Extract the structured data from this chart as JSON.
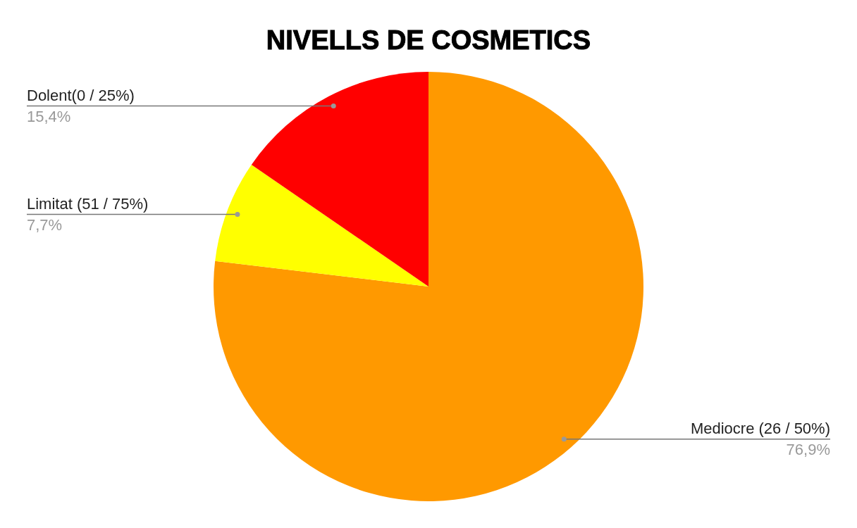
{
  "chart_data": {
    "type": "pie",
    "title": "NIVELLS DE COSMETICS",
    "categories": [
      "Mediocre (26 / 50%)",
      "Limitat (51 / 75%)",
      "Dolent(0 / 25%)"
    ],
    "values": [
      76.9,
      7.7,
      15.4
    ],
    "colors": [
      "#ff9900",
      "#ffff00",
      "#ff0000"
    ],
    "value_labels": [
      "76,9%",
      "7,7%",
      "15,4%"
    ]
  }
}
